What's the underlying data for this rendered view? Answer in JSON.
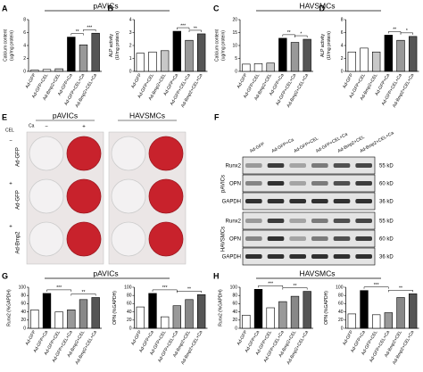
{
  "chart_data": [
    {
      "type": "bar",
      "panel": "A",
      "group": "pAVICs",
      "ylabel": [
        "Calcium content",
        "(ug/mg protein)"
      ],
      "categories": [
        "Ad-GFP",
        "Ad-GFP+CEL",
        "Ad-Bmp2+CEL",
        "Ad-GFP+Ca",
        "Ad-GFP+CEL+Ca",
        "Ad-Bmp2+CEL+Ca"
      ],
      "values": [
        0.2,
        0.3,
        0.4,
        5.3,
        4.1,
        5.9
      ],
      "colors": [
        "#ffffff",
        "#ffffff",
        "#c8c8c8",
        "#000000",
        "#999999",
        "#555555"
      ],
      "ylim": [
        0,
        8
      ],
      "yticks": [
        0,
        2,
        4,
        6,
        8
      ],
      "annotations": [
        "**",
        "***"
      ]
    },
    {
      "type": "bar",
      "panel": "B",
      "ylabel": [
        "ALP activity",
        "(U/mg protein)"
      ],
      "categories": [
        "Ad-GFP",
        "Ad-GFP+CEL",
        "Ad-Bmp2+CEL",
        "Ad-GFP+Ca",
        "Ad-GFP+CEL+Ca",
        "Ad-Bmp2+CEL+Ca"
      ],
      "values": [
        1.4,
        1.5,
        1.6,
        3.1,
        2.4,
        2.9
      ],
      "colors": [
        "#ffffff",
        "#ffffff",
        "#c8c8c8",
        "#000000",
        "#999999",
        "#555555"
      ],
      "ylim": [
        0,
        4
      ],
      "yticks": [
        0,
        1,
        2,
        3,
        4
      ],
      "annotations": [
        "***",
        "**"
      ]
    },
    {
      "type": "bar",
      "panel": "C",
      "group": "HAVSMCs",
      "ylabel": [
        "Calcium content",
        "(ug/mg protein)"
      ],
      "categories": [
        "Ad-GFP",
        "Ad-GFP+CEL",
        "Ad-Bmp2+CEL",
        "Ad-GFP+Ca",
        "Ad-GFP+CEL+Ca",
        "Ad-Bmp2+CEL+Ca"
      ],
      "values": [
        2.8,
        3.0,
        3.2,
        12.8,
        11.2,
        12.4
      ],
      "colors": [
        "#ffffff",
        "#ffffff",
        "#c8c8c8",
        "#000000",
        "#999999",
        "#555555"
      ],
      "ylim": [
        0,
        20
      ],
      "yticks": [
        0,
        5,
        10,
        15,
        20
      ],
      "annotations": [
        "**",
        "*"
      ]
    },
    {
      "type": "bar",
      "panel": "D",
      "ylabel": [
        "ALP activity",
        "(U/mg protein)"
      ],
      "categories": [
        "Ad-GFP",
        "Ad-GFP+CEL",
        "Ad-Bmp2+CEL",
        "Ad-GFP+Ca",
        "Ad-GFP+CEL+Ca",
        "Ad-Bmp2+CEL+Ca"
      ],
      "values": [
        3.0,
        3.6,
        3.0,
        5.6,
        4.8,
        5.4
      ],
      "colors": [
        "#ffffff",
        "#ffffff",
        "#c8c8c8",
        "#000000",
        "#999999",
        "#555555"
      ],
      "ylim": [
        0,
        8
      ],
      "yticks": [
        0,
        2,
        4,
        6,
        8
      ],
      "annotations": [
        "**",
        "*"
      ]
    },
    {
      "type": "bar",
      "panel": "G",
      "group": "pAVICs",
      "ylabel": [
        "Runx2 (%GAPDH)"
      ],
      "categories": [
        "Ad-GFP",
        "Ad-GFP+Ca",
        "Ad-GFP+CEL",
        "Ad-GFP+CEL+Ca",
        "Ad-Bmp2+CEL",
        "Ad-Bmp2+CEL+Ca"
      ],
      "values": [
        45,
        85,
        40,
        45,
        70,
        75
      ],
      "colors": [
        "#ffffff",
        "#000000",
        "#ffffff",
        "#999999",
        "#888888",
        "#555555"
      ],
      "ylim": [
        0,
        100
      ],
      "yticks": [
        0,
        20,
        40,
        60,
        80,
        100
      ],
      "annotations": [
        "***",
        "**"
      ]
    },
    {
      "type": "bar",
      "ylabel": [
        "OPN (%GAPDH)"
      ],
      "categories": [
        "Ad-GFP",
        "Ad-GFP+Ca",
        "Ad-GFP+CEL",
        "Ad-GFP+CEL+Ca",
        "Ad-Bmp2+CEL",
        "Ad-Bmp2+CEL+Ca"
      ],
      "values": [
        52,
        85,
        28,
        55,
        70,
        82
      ],
      "colors": [
        "#ffffff",
        "#000000",
        "#ffffff",
        "#999999",
        "#888888",
        "#555555"
      ],
      "ylim": [
        0,
        100
      ],
      "yticks": [
        0,
        20,
        40,
        60,
        80,
        100
      ],
      "annotations": [
        "***",
        "**"
      ]
    },
    {
      "type": "bar",
      "panel": "H",
      "group": "HAVSMCs",
      "ylabel": [
        "Runx2 (%GAPDH)"
      ],
      "categories": [
        "Ad-GFP",
        "Ad-GFP+Ca",
        "Ad-GFP+CEL",
        "Ad-GFP+CEL+Ca",
        "Ad-Bmp2+CEL",
        "Ad-Bmp2+CEL+Ca"
      ],
      "values": [
        32,
        95,
        50,
        65,
        78,
        90
      ],
      "colors": [
        "#ffffff",
        "#000000",
        "#ffffff",
        "#999999",
        "#888888",
        "#555555"
      ],
      "ylim": [
        0,
        100
      ],
      "yticks": [
        0,
        20,
        40,
        60,
        80,
        100
      ],
      "annotations": [
        "***",
        "**"
      ]
    },
    {
      "type": "bar",
      "ylabel": [
        "OPN (%GAPDH)"
      ],
      "categories": [
        "Ad-GFP",
        "Ad-GFP+Ca",
        "Ad-GFP+CEL",
        "Ad-GFP+CEL+Ca",
        "Ad-Bmp2+CEL",
        "Ad-Bmp2+CEL+Ca"
      ],
      "values": [
        35,
        92,
        33,
        38,
        75,
        84
      ],
      "colors": [
        "#ffffff",
        "#000000",
        "#ffffff",
        "#999999",
        "#888888",
        "#555555"
      ],
      "ylim": [
        0,
        100
      ],
      "yticks": [
        0,
        20,
        40,
        60,
        80,
        100
      ],
      "annotations": [
        "***",
        "**"
      ]
    }
  ],
  "panel_e": {
    "label": "E",
    "plates": [
      "pAVICs",
      "HAVSMCs"
    ],
    "ca_label": "Ca",
    "ca_signs": [
      "−",
      "+"
    ],
    "cel_label": "CEL",
    "rows": [
      {
        "cel": "−",
        "group": "Ad-GFP"
      },
      {
        "cel": "+",
        "group": "Ad-GFP"
      },
      {
        "cel": "+",
        "group": "Ad-Bmp2"
      }
    ]
  },
  "panel_f": {
    "label": "F",
    "lanes": [
      "Ad-GFP",
      "Ad-GFP+Ca",
      "Ad-GFP+CEL",
      "Ad-GFP+CEL+Ca",
      "Ad-Bmp2+CEL",
      "Ad-Bmp2+CEL+Ca"
    ],
    "groups": [
      {
        "name": "pAVICs",
        "blots": [
          {
            "protein": "Runx2",
            "size": "55 kD"
          },
          {
            "protein": "OPN",
            "size": "60 kD"
          },
          {
            "protein": "GAPDH",
            "size": "36 kD"
          }
        ]
      },
      {
        "name": "HAVSMCs",
        "blots": [
          {
            "protein": "Runx2",
            "size": "55 kD"
          },
          {
            "protein": "OPN",
            "size": "60 kD"
          },
          {
            "protein": "GAPDH",
            "size": "36 kD"
          }
        ]
      }
    ]
  }
}
